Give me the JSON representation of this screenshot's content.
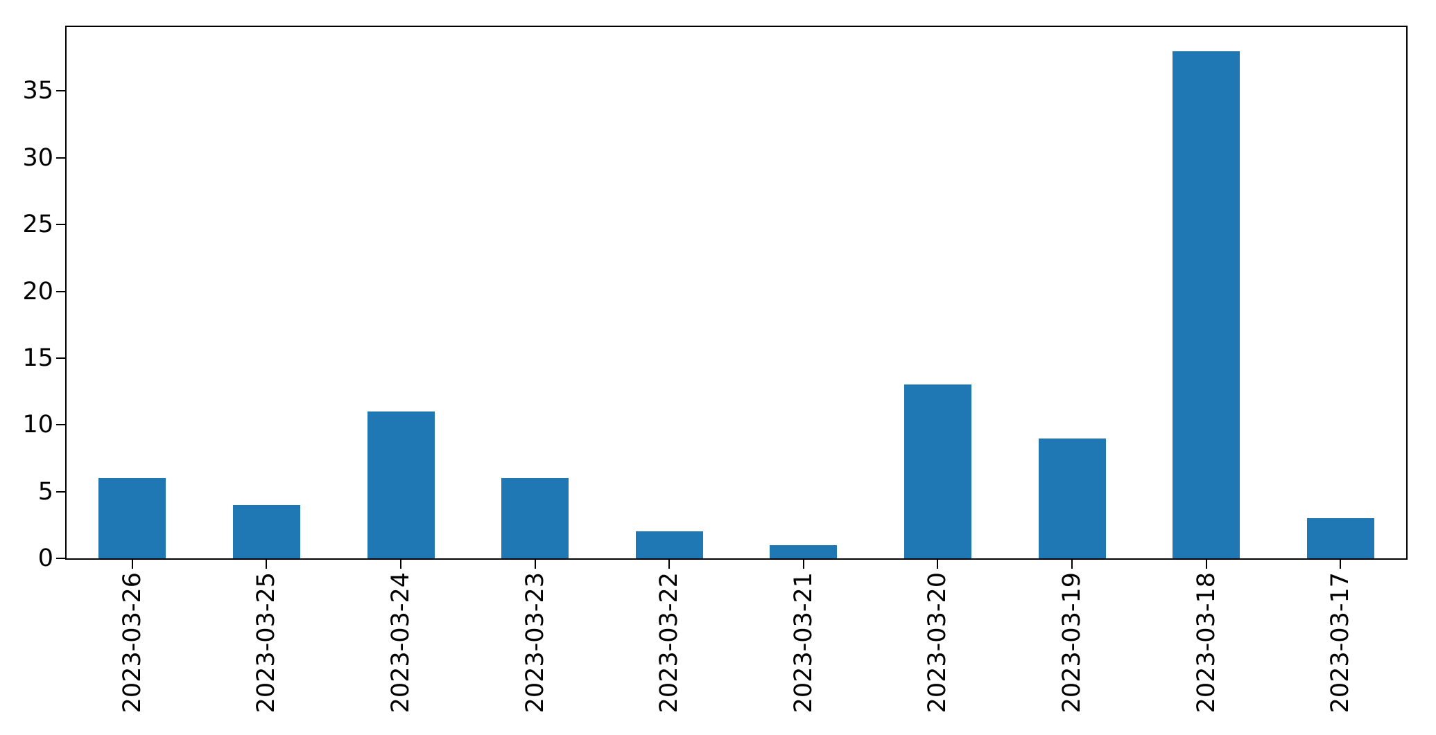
{
  "figure": {
    "background": "#ffffff",
    "frame_color": "#000000",
    "text_color": "#000000"
  },
  "chart_data": {
    "type": "bar",
    "title": "",
    "xlabel": "",
    "ylabel": "",
    "categories": [
      "2023-03-26",
      "2023-03-25",
      "2023-03-24",
      "2023-03-23",
      "2023-03-22",
      "2023-03-21",
      "2023-03-20",
      "2023-03-19",
      "2023-03-18",
      "2023-03-17"
    ],
    "values": [
      6,
      4,
      11,
      6,
      2,
      1,
      13,
      9,
      38,
      3
    ],
    "bar_color": "#1f77b4",
    "ylim": [
      0,
      39.9
    ],
    "yticks": [
      0,
      5,
      10,
      15,
      20,
      25,
      30,
      35
    ],
    "x_tick_rotation": 90,
    "grid": false,
    "legend": null
  }
}
